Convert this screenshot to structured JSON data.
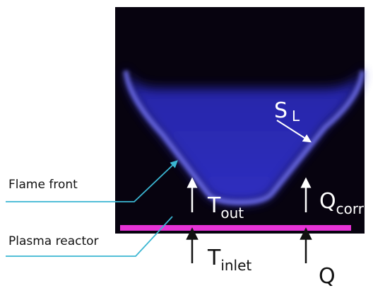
{
  "labels": {
    "flame_speed": {
      "main": "S",
      "sub": "L"
    },
    "flame_front": "Flame front",
    "t_out": {
      "main": "T",
      "sub": "out"
    },
    "q_corr": {
      "main": "Q",
      "sub": "corr"
    },
    "plasma_reactor": "Plasma reactor",
    "t_inlet": {
      "main": "T",
      "sub": "inlet"
    },
    "q": "Q"
  }
}
